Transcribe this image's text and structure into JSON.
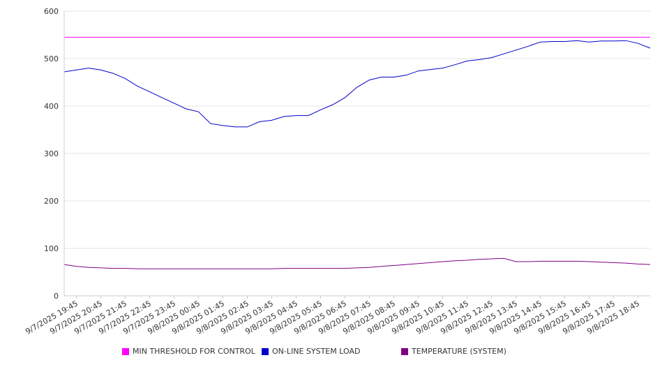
{
  "chart_data": {
    "type": "line",
    "title": "",
    "xlabel": "",
    "ylabel": "",
    "ylim": [
      0,
      600
    ],
    "y_ticks": [
      0,
      100,
      200,
      300,
      400,
      500,
      600
    ],
    "grid": true,
    "legend_position": "bottom",
    "x_tick_labels": [
      "9/7/2025 19:45",
      "9/7/2025 20:45",
      "9/7/2025 21:45",
      "9/7/2025 22:45",
      "9/7/2025 23:45",
      "9/8/2025 00:45",
      "9/8/2025 01:45",
      "9/8/2025 02:45",
      "9/8/2025 03:45",
      "9/8/2025 04:45",
      "9/8/2025 05:45",
      "9/8/2025 06:45",
      "9/8/2025 07:45",
      "9/8/2025 08:45",
      "9/8/2025 09:45",
      "9/8/2025 10:45",
      "9/8/2025 11:45",
      "9/8/2025 12:45",
      "9/8/2025 13:45",
      "9/8/2025 14:45",
      "9/8/2025 15:45",
      "9/8/2025 16:45",
      "9/8/2025 17:45",
      "9/8/2025 18:45"
    ],
    "x": [
      "9/7/2025 19:15",
      "9/7/2025 19:45",
      "9/7/2025 20:15",
      "9/7/2025 20:45",
      "9/7/2025 21:15",
      "9/7/2025 21:45",
      "9/7/2025 22:15",
      "9/7/2025 22:45",
      "9/7/2025 23:15",
      "9/7/2025 23:45",
      "9/8/2025 00:15",
      "9/8/2025 00:45",
      "9/8/2025 01:15",
      "9/8/2025 01:45",
      "9/8/2025 02:15",
      "9/8/2025 02:45",
      "9/8/2025 03:15",
      "9/8/2025 03:45",
      "9/8/2025 04:15",
      "9/8/2025 04:45",
      "9/8/2025 05:15",
      "9/8/2025 05:45",
      "9/8/2025 06:15",
      "9/8/2025 06:45",
      "9/8/2025 07:15",
      "9/8/2025 07:45",
      "9/8/2025 08:15",
      "9/8/2025 08:45",
      "9/8/2025 09:15",
      "9/8/2025 09:45",
      "9/8/2025 10:15",
      "9/8/2025 10:45",
      "9/8/2025 11:15",
      "9/8/2025 11:45",
      "9/8/2025 12:15",
      "9/8/2025 12:45",
      "9/8/2025 13:15",
      "9/8/2025 13:45",
      "9/8/2025 14:15",
      "9/8/2025 14:45",
      "9/8/2025 15:15",
      "9/8/2025 15:45",
      "9/8/2025 16:15",
      "9/8/2025 16:45",
      "9/8/2025 17:15",
      "9/8/2025 17:45",
      "9/8/2025 18:15",
      "9/8/2025 18:45",
      "9/8/2025 19:15"
    ],
    "series": [
      {
        "name": "MIN THRESHOLD FOR CONTROL",
        "color": "#ff00ff",
        "values": [
          545,
          545,
          545,
          545,
          545,
          545,
          545,
          545,
          545,
          545,
          545,
          545,
          545,
          545,
          545,
          545,
          545,
          545,
          545,
          545,
          545,
          545,
          545,
          545,
          545,
          545,
          545,
          545,
          545,
          545,
          545,
          545,
          545,
          545,
          545,
          545,
          545,
          545,
          545,
          545,
          545,
          545,
          545,
          545,
          545,
          545,
          545,
          545,
          545
        ]
      },
      {
        "name": "ON-LINE SYSTEM LOAD",
        "color": "#0000cc",
        "values": [
          472,
          476,
          480,
          476,
          469,
          458,
          442,
          430,
          418,
          406,
          394,
          388,
          363,
          359,
          356,
          356,
          367,
          370,
          378,
          380,
          380,
          392,
          403,
          418,
          440,
          455,
          461,
          461,
          465,
          474,
          477,
          480,
          487,
          495,
          498,
          502,
          510,
          518,
          526,
          535,
          536,
          536,
          538,
          535,
          537,
          537,
          538,
          532,
          522
        ]
      },
      {
        "name": "TEMPERATURE (SYSTEM)",
        "color": "#800080",
        "values": [
          66,
          62,
          60,
          59,
          58,
          58,
          57,
          57,
          57,
          57,
          57,
          57,
          57,
          57,
          57,
          57,
          57,
          57,
          58,
          58,
          58,
          58,
          58,
          58,
          59,
          60,
          62,
          64,
          66,
          68,
          70,
          72,
          74,
          75,
          77,
          78,
          79,
          72,
          72,
          73,
          73,
          73,
          73,
          72,
          71,
          70,
          69,
          67,
          66
        ]
      }
    ]
  }
}
